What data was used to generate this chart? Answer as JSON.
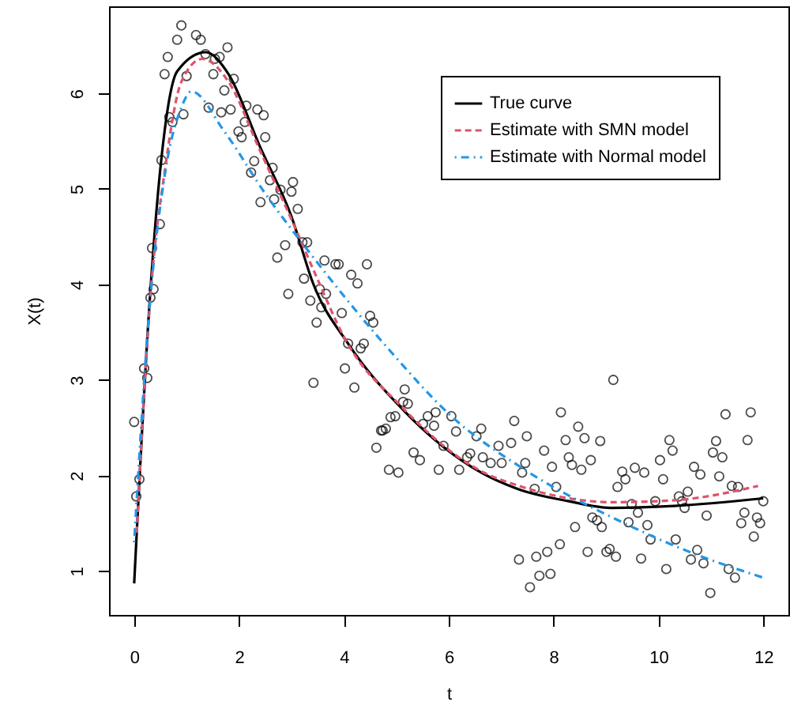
{
  "chart_data": {
    "type": "line",
    "xlabel": "t",
    "ylabel": "X(t)",
    "xlim": [
      -0.48,
      12.48
    ],
    "ylim": [
      0.54,
      6.91
    ],
    "xticks": [
      0,
      2,
      4,
      6,
      8,
      10,
      12
    ],
    "yticks": [
      1,
      2,
      3,
      4,
      5,
      6
    ],
    "grid": false,
    "legend": "top right",
    "series": [
      {
        "type": "scatter",
        "marker": "circle",
        "color": "#000000",
        "x": [
          0.0,
          0.04,
          0.1,
          0.19,
          0.25,
          0.31,
          0.37,
          0.34,
          0.49,
          0.52,
          0.67,
          0.73,
          0.58,
          0.64,
          0.82,
          0.9,
          0.94,
          1.0,
          1.18,
          1.27,
          1.36,
          1.54,
          1.63,
          1.51,
          1.78,
          1.9,
          1.72,
          1.42,
          1.66,
          1.84,
          2.14,
          2.35,
          2.47,
          2.11,
          1.99,
          2.05,
          2.5,
          2.29,
          2.23,
          2.64,
          2.41,
          2.59,
          2.79,
          3.0,
          3.03,
          3.12,
          2.67,
          2.88,
          2.73,
          3.21,
          3.3,
          3.63,
          3.24,
          2.94,
          3.36,
          3.57,
          3.54,
          3.48,
          3.42,
          3.84,
          3.9,
          4.44,
          4.14,
          4.26,
          3.66,
          3.96,
          4.5,
          4.56,
          4.08,
          4.38,
          4.32,
          4.02,
          4.2,
          5.16,
          5.13,
          5.22,
          4.98,
          4.89,
          5.6,
          5.75,
          5.51,
          5.72,
          6.05,
          4.71,
          4.74,
          4.8,
          4.62,
          5.33,
          5.45,
          5.9,
          6.14,
          6.62,
          6.53,
          7.25,
          7.49,
          7.19,
          6.95,
          6.41,
          6.35,
          6.65,
          6.8,
          4.86,
          5.04,
          5.81,
          6.2,
          7.01,
          7.46,
          7.82,
          9.14,
          8.14,
          11.76,
          11.28,
          8.47,
          8.23,
          8.59,
          8.89,
          10.21,
          11.1,
          11.7,
          10.27,
          11.04,
          8.29,
          8.71,
          11.22,
          10.03,
          7.97,
          8.35,
          8.53,
          9.55,
          9.73,
          10.68,
          10.8,
          9.31,
          7.4,
          9.37,
          11.16,
          10.09,
          11.4,
          11.52,
          7.64,
          8.05,
          9.22,
          10.56,
          10.39,
          10.45,
          10.5,
          9.94,
          9.49,
          12.0,
          9.61,
          8.74,
          8.83,
          8.92,
          9.43,
          8.41,
          9.79,
          10.92,
          11.64,
          11.58,
          11.88,
          11.94,
          9.85,
          11.82,
          8.12,
          8.65,
          9.01,
          9.07,
          9.19,
          9.67,
          10.33,
          10.74,
          10.62,
          10.86,
          7.88,
          7.67,
          7.34,
          11.34,
          11.46,
          10.15,
          7.73,
          7.94,
          7.55,
          10.99
        ],
        "values": [
          2.56,
          1.78,
          1.96,
          3.12,
          3.02,
          3.86,
          3.95,
          4.38,
          4.63,
          5.3,
          5.75,
          5.7,
          6.2,
          6.38,
          6.56,
          6.71,
          5.78,
          6.18,
          6.61,
          6.56,
          6.41,
          6.36,
          6.38,
          6.2,
          6.48,
          6.15,
          6.03,
          5.85,
          5.8,
          5.83,
          5.87,
          5.83,
          5.77,
          5.7,
          5.6,
          5.54,
          5.54,
          5.29,
          5.17,
          5.22,
          4.86,
          5.09,
          4.99,
          4.97,
          5.07,
          4.79,
          4.89,
          4.41,
          4.28,
          4.44,
          4.44,
          4.25,
          4.06,
          3.9,
          3.83,
          3.76,
          3.95,
          3.6,
          2.97,
          4.21,
          4.21,
          4.21,
          4.1,
          4.01,
          3.9,
          3.7,
          3.67,
          3.6,
          3.38,
          3.38,
          3.33,
          3.12,
          2.92,
          2.9,
          2.77,
          2.75,
          2.62,
          2.61,
          2.62,
          2.66,
          2.54,
          2.52,
          2.62,
          2.47,
          2.47,
          2.49,
          2.29,
          2.24,
          2.16,
          2.31,
          2.46,
          2.49,
          2.41,
          2.57,
          2.41,
          2.34,
          2.31,
          2.23,
          2.19,
          2.19,
          2.13,
          2.06,
          2.03,
          2.06,
          2.06,
          2.13,
          2.13,
          2.26,
          3.0,
          2.66,
          2.66,
          2.64,
          2.51,
          2.37,
          2.39,
          2.36,
          2.37,
          2.36,
          2.37,
          2.26,
          2.24,
          2.19,
          2.16,
          2.19,
          2.16,
          2.09,
          2.11,
          2.06,
          2.08,
          2.03,
          2.09,
          2.01,
          2.04,
          2.03,
          1.96,
          1.99,
          1.96,
          1.89,
          1.88,
          1.86,
          1.88,
          1.88,
          1.83,
          1.78,
          1.73,
          1.66,
          1.73,
          1.7,
          1.73,
          1.61,
          1.56,
          1.53,
          1.46,
          1.51,
          1.46,
          1.48,
          1.58,
          1.61,
          1.5,
          1.56,
          1.5,
          1.33,
          1.36,
          1.28,
          1.2,
          1.2,
          1.23,
          1.15,
          1.13,
          1.33,
          1.22,
          1.12,
          1.08,
          1.2,
          1.15,
          1.12,
          1.02,
          0.93,
          1.02,
          0.95,
          0.97,
          0.83,
          0.77
        ]
      },
      {
        "name": "True curve",
        "color": "#000000",
        "line_style": "solid",
        "x": [
          0,
          0.3,
          0.52,
          0.82,
          1.36,
          1.8,
          2.4,
          3.0,
          3.42,
          4.08,
          5.16,
          6.62,
          7.31,
          8.29,
          9.1,
          10.3,
          12.0
        ],
        "values": [
          0.87,
          3.86,
          5.32,
          6.23,
          6.43,
          6.2,
          5.44,
          4.71,
          4.0,
          3.38,
          2.67,
          2.03,
          1.86,
          1.73,
          1.66,
          1.68,
          1.76
        ]
      },
      {
        "name": "Estimate with SMN model",
        "color": "#df536b",
        "line_style": "dashed",
        "x": [
          0.05,
          0.3,
          0.6,
          0.9,
          1.3,
          1.8,
          2.4,
          3.0,
          3.5,
          4.0,
          5.1,
          6.6,
          7.4,
          8.3,
          9.1,
          10.3,
          11.9
        ],
        "values": [
          1.4,
          3.8,
          5.25,
          6.12,
          6.36,
          6.12,
          5.4,
          4.68,
          4.05,
          3.45,
          2.72,
          2.05,
          1.88,
          1.76,
          1.72,
          1.74,
          1.89
        ]
      },
      {
        "name": "Estimate with Normal model",
        "color": "#2297e6",
        "line_style": "dotted",
        "x": [
          0.0,
          0.3,
          0.6,
          0.9,
          1.09,
          1.72,
          2.5,
          3.42,
          4.92,
          6.05,
          7.42,
          9.31,
          10.5,
          12.0
        ],
        "values": [
          1.3,
          3.8,
          5.2,
          5.85,
          6.02,
          5.6,
          4.95,
          4.28,
          3.28,
          2.62,
          2.07,
          1.51,
          1.22,
          0.93
        ]
      }
    ]
  }
}
